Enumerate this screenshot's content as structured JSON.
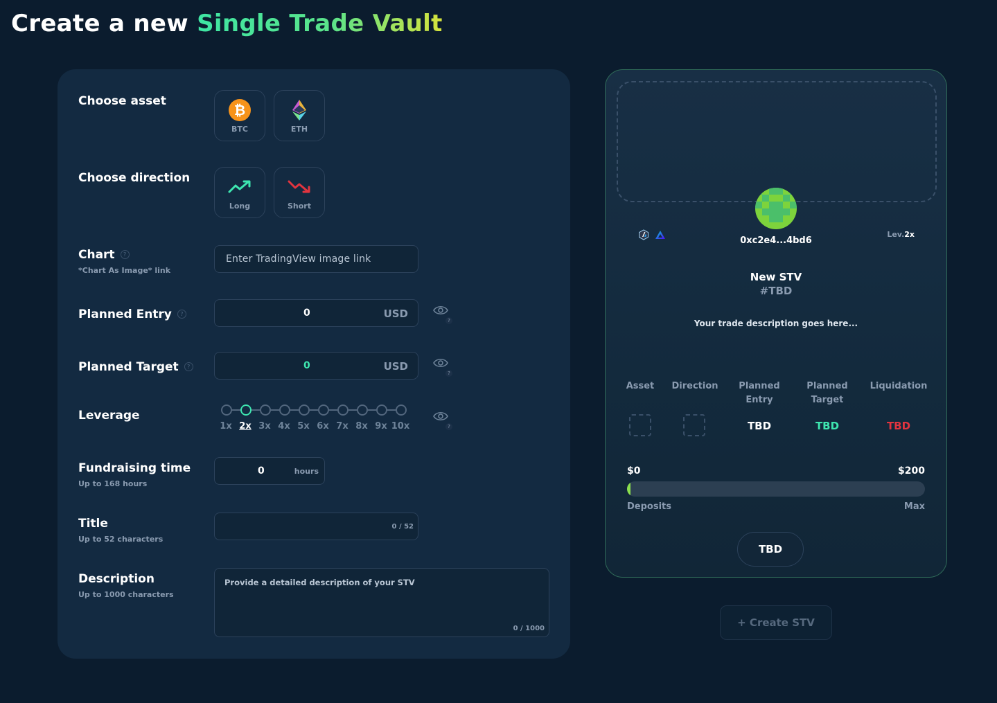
{
  "header": {
    "title_prefix": "Create a new ",
    "title_highlight": "Single Trade Vault"
  },
  "form": {
    "asset": {
      "label": "Choose asset",
      "options": [
        "BTC",
        "ETH"
      ]
    },
    "direction": {
      "label": "Choose direction",
      "options": [
        "Long",
        "Short"
      ]
    },
    "chart": {
      "label": "Chart",
      "sublabel": "*Chart As Image* link",
      "placeholder": "Enter TradingView image link"
    },
    "planned_entry": {
      "label": "Planned Entry",
      "value": "0",
      "unit": "USD"
    },
    "planned_target": {
      "label": "Planned Target",
      "value": "0",
      "unit": "USD"
    },
    "leverage": {
      "label": "Leverage",
      "options": [
        "1x",
        "2x",
        "3x",
        "4x",
        "5x",
        "6x",
        "7x",
        "8x",
        "9x",
        "10x"
      ],
      "selected": "2x"
    },
    "fundraising": {
      "label": "Fundraising time",
      "sublabel": "Up to 168 hours",
      "value": "0",
      "unit": "hours"
    },
    "title": {
      "label": "Title",
      "sublabel": "Up to 52 characters",
      "counter": "0 / 52"
    },
    "description": {
      "label": "Description",
      "sublabel": "Up to 1000 characters",
      "placeholder": "Provide a detailed description of your STV",
      "counter": "0 / 1000"
    },
    "help_glyph": "?"
  },
  "preview": {
    "address": "0xc2e4...4bd6",
    "leverage_prefix": "Lev.",
    "leverage_value": "2x",
    "name": "New STV",
    "id": "#TBD",
    "description": "Your trade description goes here...",
    "columns": {
      "asset": "Asset",
      "direction": "Direction",
      "entry": [
        "Planned",
        "Entry"
      ],
      "target": [
        "Planned",
        "Target"
      ],
      "liquidation": "Liquidation"
    },
    "values": {
      "entry": "TBD",
      "target": "TBD",
      "liquidation": "TBD"
    },
    "deposits_current": "$0",
    "deposits_max": "$200",
    "deposits_fraction": 0.01,
    "deposits_label": "Deposits",
    "max_label": "Max",
    "status_button": "TBD",
    "colors": {
      "accent_green": "#3ee6b0",
      "danger_red": "#e2343f",
      "bar_fill": "#8be04e"
    }
  },
  "actions": {
    "create": "+ Create STV"
  }
}
